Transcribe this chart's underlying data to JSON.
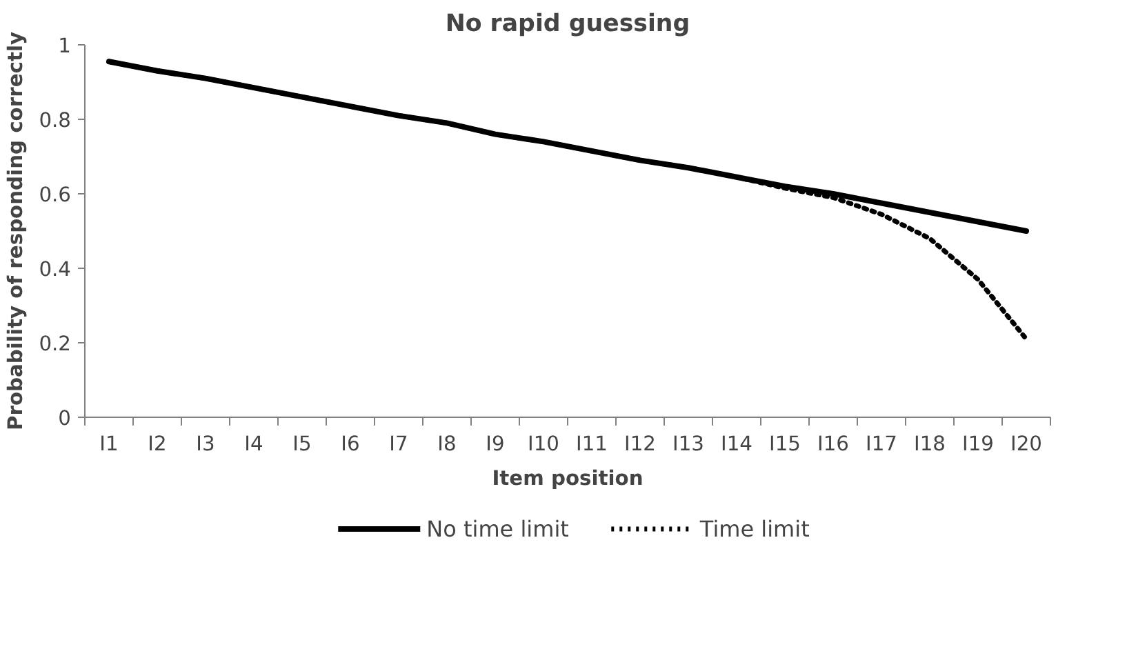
{
  "chart_data": {
    "type": "line",
    "title": "No rapid guessing",
    "xlabel": "Item position",
    "ylabel": "Probability of responding correctly",
    "categories": [
      "I1",
      "I2",
      "I3",
      "I4",
      "I5",
      "I6",
      "I7",
      "I8",
      "I9",
      "I10",
      "I11",
      "I12",
      "I13",
      "I14",
      "I15",
      "I16",
      "I17",
      "I18",
      "I19",
      "I20"
    ],
    "series": [
      {
        "name": "No time limit",
        "color": "#000000",
        "line_style": "solid",
        "values": [
          0.955,
          0.93,
          0.91,
          0.885,
          0.86,
          0.835,
          0.81,
          0.79,
          0.76,
          0.74,
          0.715,
          0.69,
          0.67,
          0.645,
          0.62,
          0.6,
          0.575,
          0.55,
          0.525,
          0.5
        ]
      },
      {
        "name": "Time limit",
        "color": "#000000",
        "line_style": "dotted",
        "values": [
          0.955,
          0.93,
          0.91,
          0.885,
          0.86,
          0.835,
          0.81,
          0.79,
          0.76,
          0.74,
          0.715,
          0.69,
          0.67,
          0.645,
          0.615,
          0.59,
          0.545,
          0.48,
          0.37,
          0.21
        ]
      }
    ],
    "ylim": [
      0,
      1
    ],
    "yticks": [
      0,
      0.2,
      0.4,
      0.6,
      0.8,
      1
    ],
    "grid": false,
    "legend": "bottom",
    "marker": "none"
  }
}
